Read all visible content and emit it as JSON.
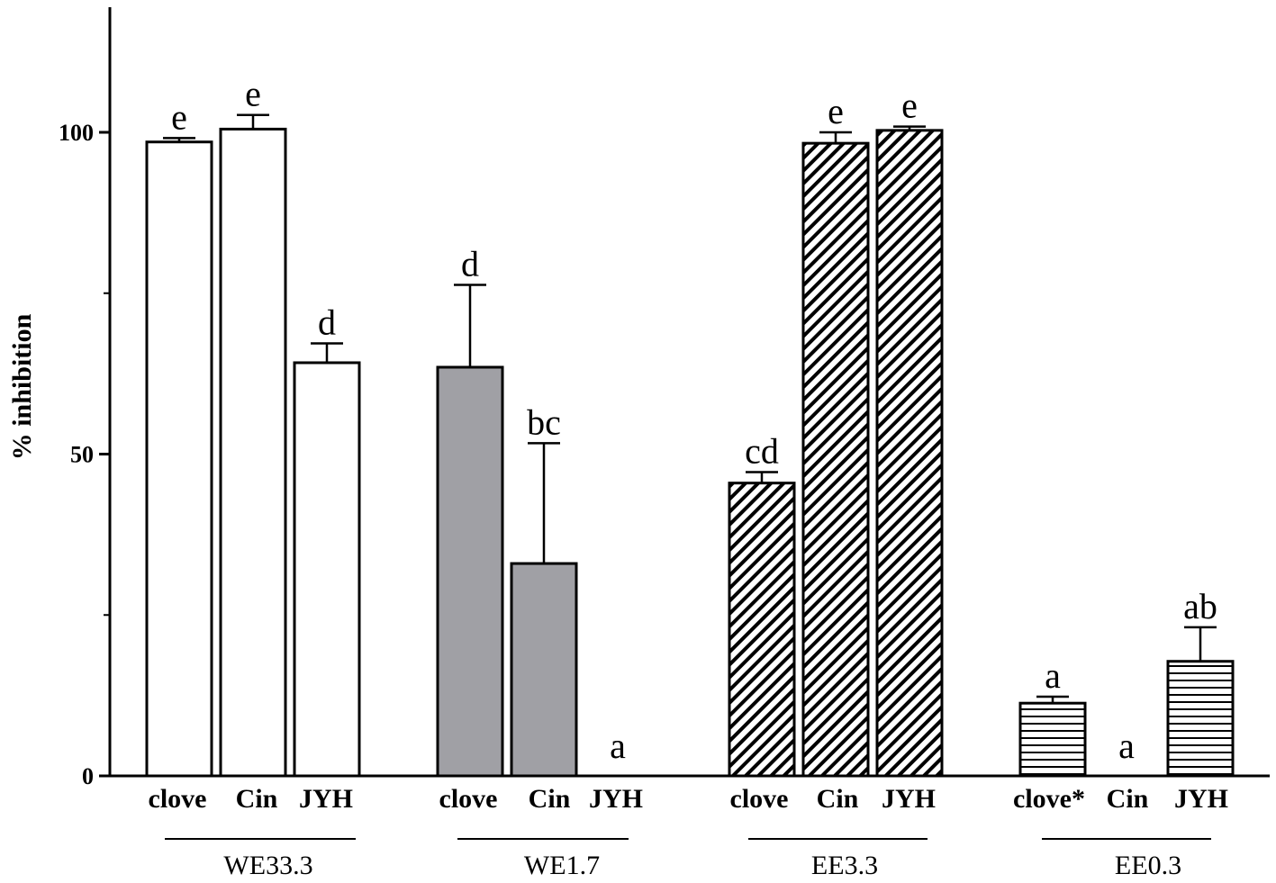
{
  "chart_data": {
    "type": "bar",
    "title": "",
    "ylabel": "% inhibition",
    "xlabel": "",
    "ylim": [
      0,
      119
    ],
    "yticks": [
      0,
      50,
      100
    ],
    "yminor": [
      25,
      75
    ],
    "grid": false,
    "groups": [
      {
        "name": "WE33.3",
        "fill": "white",
        "bars": [
          {
            "category": "clove",
            "value": 98.5,
            "error": 0.6,
            "letter": "e"
          },
          {
            "category": "Cin",
            "value": 100.5,
            "error": 2.2,
            "letter": "e"
          },
          {
            "category": "JYH",
            "value": 64.2,
            "error": 3.0,
            "letter": "d"
          }
        ]
      },
      {
        "name": "WE1.7",
        "fill": "grey",
        "bars": [
          {
            "category": "clove",
            "value": 63.5,
            "error": 12.8,
            "letter": "d"
          },
          {
            "category": "Cin",
            "value": 33.0,
            "error": 18.7,
            "letter": "bc"
          },
          {
            "category": "JYH",
            "value": 0,
            "error": 0,
            "letter": "a"
          }
        ]
      },
      {
        "name": "EE3.3",
        "fill": "diagonal-hatch",
        "bars": [
          {
            "category": "clove",
            "value": 45.5,
            "error": 1.7,
            "letter": "cd"
          },
          {
            "category": "Cin",
            "value": 98.3,
            "error": 1.7,
            "letter": "e"
          },
          {
            "category": "JYH",
            "value": 100.3,
            "error": 0.6,
            "letter": "e"
          }
        ]
      },
      {
        "name": "EE0.3",
        "fill": "horizontal-hatch",
        "bars": [
          {
            "category": "clove*",
            "value": 11.3,
            "error": 1.0,
            "letter": "a"
          },
          {
            "category": "Cin",
            "value": 0,
            "error": 0,
            "letter": "a"
          },
          {
            "category": "JYH",
            "value": 17.8,
            "error": 5.3,
            "letter": "ab"
          }
        ]
      }
    ],
    "colors": {
      "white": "#ffffff",
      "grey": "#a0a0a5",
      "outline": "#000000"
    }
  }
}
